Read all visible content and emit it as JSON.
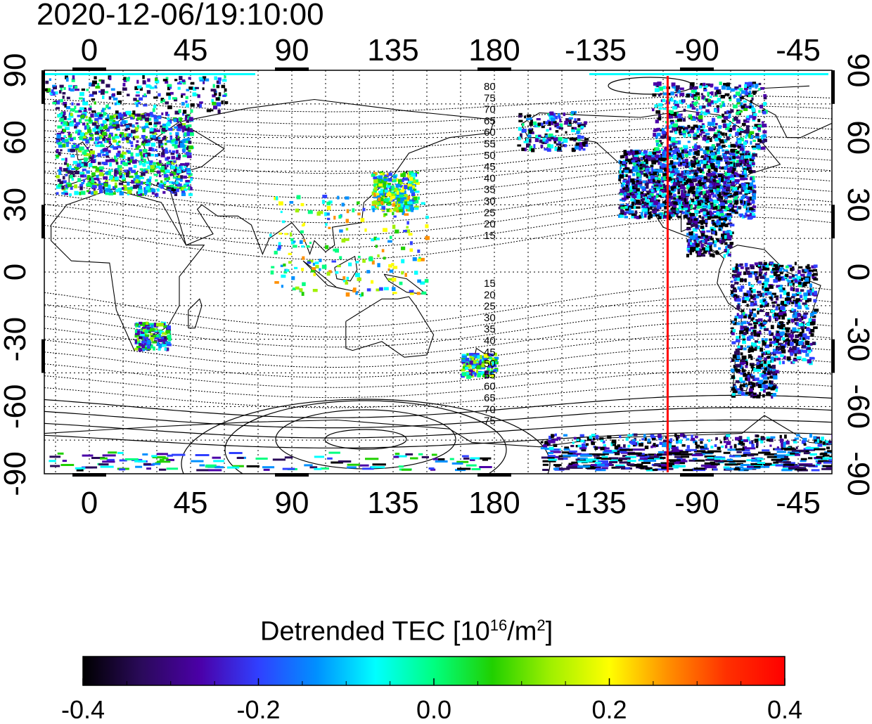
{
  "timestamp": "2020-12-06/19:10:00",
  "chart_data": {
    "type": "heatmap",
    "title": "2020-12-06/19:10:00",
    "x_tick_labels": [
      "0",
      "45",
      "90",
      "135",
      "180",
      "-135",
      "-90",
      "-45"
    ],
    "y_tick_labels_left": [
      "90",
      "60",
      "30",
      "0",
      "-30",
      "-60",
      "-90"
    ],
    "y_tick_labels_right": [
      "90",
      "60",
      "30",
      "0",
      "-30",
      "-60",
      "-90"
    ],
    "xlim": [
      -20,
      330
    ],
    "ylim": [
      -90,
      90
    ],
    "grid": true,
    "projection": "equirectangular",
    "marker_longitude": -103,
    "marker_color": "#ff0000",
    "contour_labels_north": [
      "80",
      "75",
      "70",
      "65",
      "60",
      "55",
      "50",
      "45",
      "40",
      "35",
      "30",
      "25",
      "20",
      "15"
    ],
    "contour_labels_south": [
      "15",
      "20",
      "25",
      "30",
      "35",
      "40",
      "45",
      "50",
      "55",
      "60",
      "65",
      "70",
      "75"
    ],
    "colorbar": {
      "label_text": "Detrended TEC  [10",
      "label_exp": "16",
      "label_unit": "/m",
      "label_unit_exp": "2",
      "label_close": "]",
      "range": [
        -0.4,
        0.4
      ],
      "tick_labels": [
        "-0.4",
        "-0.2",
        "0.0",
        "0.2",
        "0.4"
      ],
      "tick_values": [
        -0.4,
        -0.2,
        0.0,
        0.2,
        0.4
      ],
      "colors": [
        "#000000",
        "#2a0a5a",
        "#4b00a8",
        "#3040ff",
        "#0090ff",
        "#00ffff",
        "#00ff80",
        "#20d000",
        "#a0f000",
        "#ffff00",
        "#ff9000",
        "#ff3000",
        "#ff0000"
      ]
    }
  }
}
